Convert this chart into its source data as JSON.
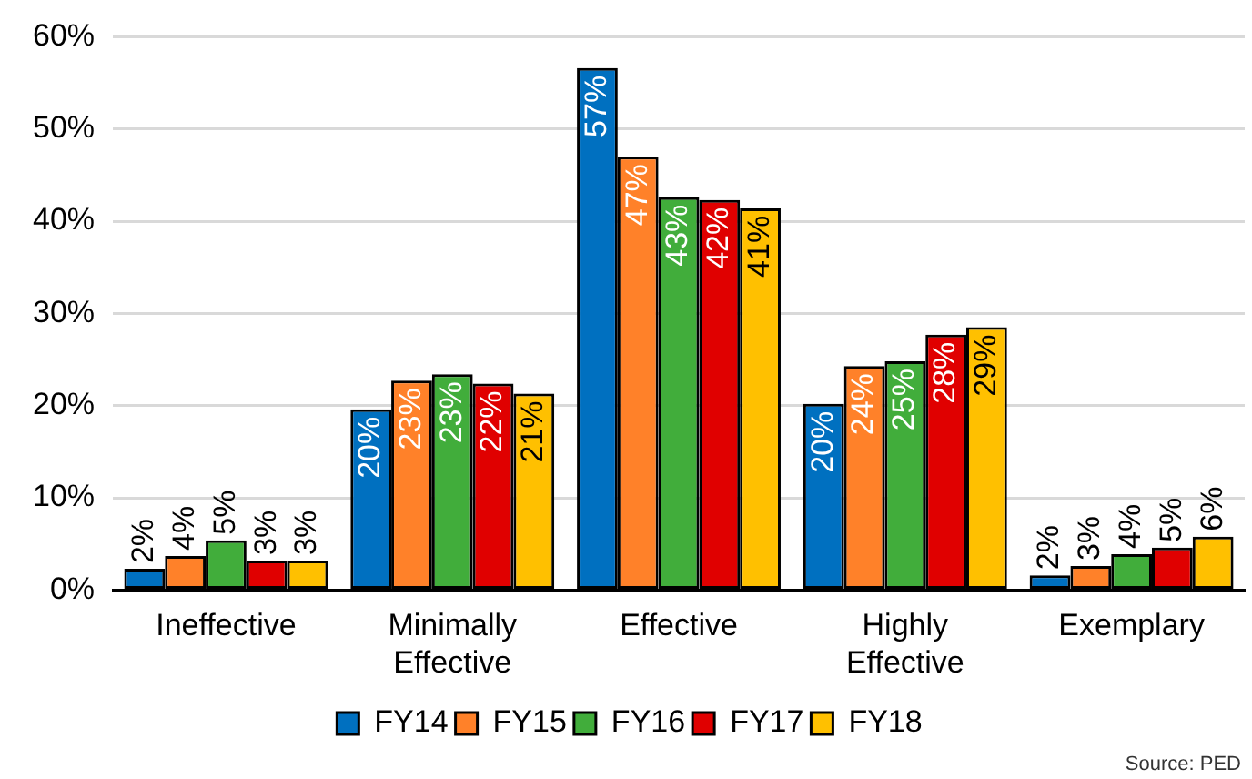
{
  "chart_data": {
    "type": "bar",
    "categories": [
      "Ineffective",
      "Minimally Effective",
      "Effective",
      "Highly Effective",
      "Exemplary"
    ],
    "series": [
      {
        "name": "FY14",
        "color": "#0070c0",
        "values": [
          2.3,
          19.6,
          56.6,
          20.2,
          1.6
        ],
        "value_labels": [
          "2%",
          "20%",
          "57%",
          "20%",
          "2%"
        ]
      },
      {
        "name": "FY15",
        "color": "#ff8129",
        "values": [
          3.7,
          22.7,
          47,
          24.3,
          2.6
        ],
        "value_labels": [
          "4%",
          "23%",
          "47%",
          "24%",
          "3%"
        ]
      },
      {
        "name": "FY16",
        "color": "#41ad3b",
        "values": [
          5.4,
          23.4,
          42.6,
          24.8,
          3.9
        ],
        "value_labels": [
          "5%",
          "23%",
          "43%",
          "25%",
          "4%"
        ]
      },
      {
        "name": "FY17",
        "color": "#e00000",
        "values": [
          3.2,
          22.4,
          42.3,
          27.7,
          4.6
        ],
        "value_labels": [
          "3%",
          "22%",
          "42%",
          "28%",
          "5%"
        ]
      },
      {
        "name": "FY18",
        "color": "#ffc000",
        "values": [
          3.2,
          21.3,
          41.4,
          28.5,
          5.8
        ],
        "value_labels": [
          "3%",
          "21%",
          "41%",
          "29%",
          "6%"
        ]
      }
    ],
    "ylim": [
      0,
      60
    ],
    "yticks": [
      {
        "value": 0,
        "label": "0%"
      },
      {
        "value": 10,
        "label": "10%"
      },
      {
        "value": 20,
        "label": "20%"
      },
      {
        "value": 30,
        "label": "30%"
      },
      {
        "value": 40,
        "label": "40%"
      },
      {
        "value": 50,
        "label": "50%"
      },
      {
        "value": 60,
        "label": "60%"
      }
    ],
    "grid": "y",
    "legend": "bottom",
    "annotations": [
      "Source: PED"
    ]
  }
}
